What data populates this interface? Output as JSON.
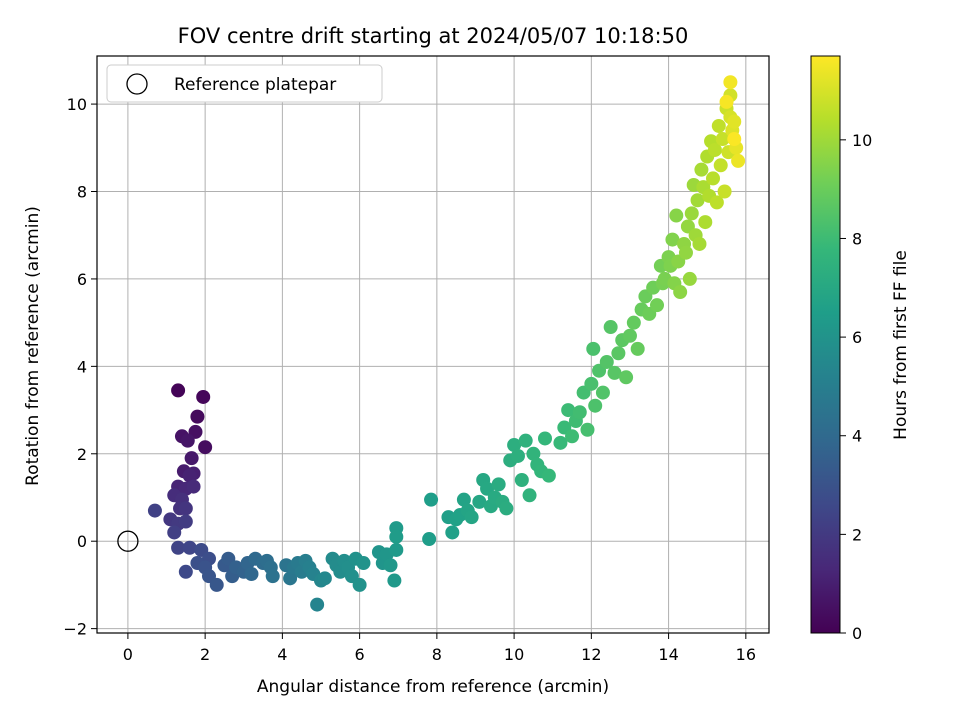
{
  "chart_data": {
    "type": "scatter",
    "title": "FOV centre drift starting at 2024/05/07 10:18:50",
    "xlabel": "Angular distance from reference (arcmin)",
    "ylabel": "Rotation from reference (arcmin)",
    "xlim": [
      -0.8,
      16.6
    ],
    "ylim": [
      -2.1,
      11.1
    ],
    "xticks": [
      0,
      2,
      4,
      6,
      8,
      10,
      12,
      14,
      16
    ],
    "yticks": [
      -2,
      0,
      2,
      4,
      6,
      8,
      10
    ],
    "grid": true,
    "legend": {
      "position": "top-left",
      "entries": [
        {
          "label": "Reference platepar",
          "marker": "open-circle",
          "x": 0,
          "y": 0
        }
      ]
    },
    "colorbar": {
      "label": "Hours from first FF file",
      "range": [
        0,
        11.7
      ],
      "ticks": [
        0,
        2,
        4,
        6,
        8,
        10
      ],
      "colormap": "viridis",
      "stops": [
        "#440154",
        "#482878",
        "#3e4989",
        "#31688e",
        "#26828e",
        "#1f9e89",
        "#35b779",
        "#6ece58",
        "#b5de2b",
        "#fde725"
      ]
    },
    "series": [
      {
        "points": [
          [
            1.3,
            3.45,
            0.1
          ],
          [
            1.95,
            3.3,
            0.2
          ],
          [
            1.8,
            2.85,
            0.3
          ],
          [
            2.0,
            2.15,
            0.4
          ],
          [
            1.75,
            2.5,
            0.5
          ],
          [
            1.4,
            2.4,
            0.6
          ],
          [
            1.55,
            2.3,
            0.7
          ],
          [
            1.65,
            1.9,
            0.8
          ],
          [
            1.45,
            1.6,
            0.9
          ],
          [
            1.7,
            1.55,
            1.0
          ],
          [
            1.6,
            1.5,
            1.1
          ],
          [
            1.3,
            1.25,
            1.2
          ],
          [
            1.5,
            1.2,
            1.3
          ],
          [
            1.7,
            1.25,
            1.4
          ],
          [
            1.2,
            1.05,
            1.5
          ],
          [
            1.4,
            0.95,
            1.6
          ],
          [
            1.35,
            0.75,
            1.7
          ],
          [
            1.5,
            0.75,
            1.8
          ],
          [
            1.1,
            0.5,
            1.9
          ],
          [
            1.3,
            0.4,
            2.0
          ],
          [
            1.5,
            0.45,
            2.1
          ],
          [
            1.2,
            0.2,
            2.2
          ],
          [
            0.7,
            0.7,
            2.3
          ],
          [
            1.3,
            -0.15,
            2.4
          ],
          [
            1.6,
            -0.15,
            2.5
          ],
          [
            1.5,
            -0.7,
            2.6
          ],
          [
            1.9,
            -0.2,
            2.7
          ],
          [
            2.1,
            -0.4,
            2.8
          ],
          [
            1.8,
            -0.5,
            2.9
          ],
          [
            2.0,
            -0.6,
            3.0
          ],
          [
            2.1,
            -0.8,
            3.1
          ],
          [
            2.3,
            -1.0,
            3.2
          ],
          [
            2.5,
            -0.55,
            3.3
          ],
          [
            2.6,
            -0.4,
            3.4
          ],
          [
            2.7,
            -0.8,
            3.5
          ],
          [
            2.8,
            -0.6,
            3.6
          ],
          [
            3.0,
            -0.7,
            3.7
          ],
          [
            3.1,
            -0.5,
            3.8
          ],
          [
            3.2,
            -0.75,
            3.9
          ],
          [
            3.3,
            -0.4,
            4.0
          ],
          [
            3.5,
            -0.5,
            4.1
          ],
          [
            3.6,
            -0.45,
            4.2
          ],
          [
            3.7,
            -0.6,
            4.3
          ],
          [
            3.75,
            -0.8,
            4.4
          ],
          [
            4.1,
            -0.55,
            4.5
          ],
          [
            4.2,
            -0.85,
            4.6
          ],
          [
            4.3,
            -0.6,
            4.7
          ],
          [
            4.4,
            -0.5,
            4.8
          ],
          [
            4.5,
            -0.7,
            4.9
          ],
          [
            4.6,
            -0.45,
            5.0
          ],
          [
            4.7,
            -0.6,
            5.1
          ],
          [
            4.8,
            -0.75,
            5.2
          ],
          [
            4.9,
            -1.45,
            5.3
          ],
          [
            5.0,
            -0.9,
            5.4
          ],
          [
            5.1,
            -0.85,
            5.5
          ],
          [
            5.3,
            -0.4,
            5.6
          ],
          [
            5.4,
            -0.55,
            5.65
          ],
          [
            5.5,
            -0.7,
            5.7
          ],
          [
            5.6,
            -0.45,
            5.75
          ],
          [
            5.7,
            -0.6,
            5.8
          ],
          [
            5.8,
            -0.8,
            5.85
          ],
          [
            5.9,
            -0.4,
            5.9
          ],
          [
            6.0,
            -1.0,
            5.95
          ],
          [
            6.1,
            -0.5,
            6.0
          ],
          [
            6.5,
            -0.25,
            6.05
          ],
          [
            6.6,
            -0.5,
            6.1
          ],
          [
            6.7,
            -0.3,
            6.15
          ],
          [
            6.8,
            -0.55,
            6.2
          ],
          [
            6.9,
            -0.9,
            6.25
          ],
          [
            6.95,
            -0.2,
            6.3
          ],
          [
            6.95,
            0.3,
            6.35
          ],
          [
            6.95,
            0.1,
            6.4
          ],
          [
            7.8,
            0.05,
            6.45
          ],
          [
            7.85,
            0.95,
            6.5
          ],
          [
            8.3,
            0.55,
            6.55
          ],
          [
            8.4,
            0.2,
            6.6
          ],
          [
            8.5,
            0.5,
            6.65
          ],
          [
            8.6,
            0.6,
            6.7
          ],
          [
            8.7,
            0.95,
            6.75
          ],
          [
            8.8,
            0.7,
            6.8
          ],
          [
            8.9,
            0.55,
            6.85
          ],
          [
            9.1,
            0.9,
            6.9
          ],
          [
            9.2,
            1.4,
            6.95
          ],
          [
            9.3,
            1.2,
            7.0
          ],
          [
            9.4,
            0.8,
            7.05
          ],
          [
            9.5,
            1.0,
            7.1
          ],
          [
            9.6,
            1.3,
            7.15
          ],
          [
            9.7,
            0.9,
            7.2
          ],
          [
            9.8,
            0.75,
            7.25
          ],
          [
            9.9,
            1.85,
            7.3
          ],
          [
            10.0,
            2.2,
            7.35
          ],
          [
            10.1,
            1.95,
            7.4
          ],
          [
            10.2,
            1.4,
            7.45
          ],
          [
            10.3,
            2.3,
            7.5
          ],
          [
            10.4,
            1.05,
            7.55
          ],
          [
            10.5,
            2.0,
            7.6
          ],
          [
            10.6,
            1.75,
            7.65
          ],
          [
            10.7,
            1.6,
            7.7
          ],
          [
            10.8,
            2.35,
            7.75
          ],
          [
            10.9,
            1.5,
            7.8
          ],
          [
            11.2,
            2.25,
            7.85
          ],
          [
            11.3,
            2.6,
            7.9
          ],
          [
            11.4,
            3.0,
            7.95
          ],
          [
            11.5,
            2.4,
            8.0
          ],
          [
            11.6,
            2.75,
            8.05
          ],
          [
            11.7,
            2.95,
            8.1
          ],
          [
            11.8,
            3.4,
            8.15
          ],
          [
            11.9,
            2.55,
            8.2
          ],
          [
            12.0,
            3.6,
            8.25
          ],
          [
            12.05,
            4.4,
            8.3
          ],
          [
            12.1,
            3.1,
            8.35
          ],
          [
            12.2,
            3.9,
            8.4
          ],
          [
            12.3,
            3.4,
            8.45
          ],
          [
            12.4,
            4.1,
            8.5
          ],
          [
            12.5,
            4.9,
            8.55
          ],
          [
            12.6,
            3.85,
            8.6
          ],
          [
            12.7,
            4.3,
            8.65
          ],
          [
            12.8,
            4.6,
            8.7
          ],
          [
            12.9,
            3.75,
            8.75
          ],
          [
            13.0,
            4.7,
            8.8
          ],
          [
            13.1,
            5.0,
            8.85
          ],
          [
            13.2,
            4.4,
            8.9
          ],
          [
            13.3,
            5.3,
            8.95
          ],
          [
            13.4,
            5.6,
            9.0
          ],
          [
            13.5,
            5.2,
            9.05
          ],
          [
            13.6,
            5.8,
            9.1
          ],
          [
            13.7,
            5.4,
            9.15
          ],
          [
            13.8,
            6.3,
            9.2
          ],
          [
            13.85,
            5.9,
            9.25
          ],
          [
            13.9,
            6.0,
            9.3
          ],
          [
            14.0,
            6.5,
            9.35
          ],
          [
            14.05,
            6.3,
            9.4
          ],
          [
            14.1,
            6.9,
            9.45
          ],
          [
            14.15,
            5.9,
            9.5
          ],
          [
            14.2,
            7.45,
            9.55
          ],
          [
            14.25,
            6.4,
            9.6
          ],
          [
            14.3,
            5.7,
            9.65
          ],
          [
            14.4,
            6.8,
            9.7
          ],
          [
            14.45,
            6.6,
            9.75
          ],
          [
            14.5,
            7.2,
            9.8
          ],
          [
            14.55,
            6.0,
            9.85
          ],
          [
            14.6,
            7.5,
            9.9
          ],
          [
            14.65,
            8.15,
            9.95
          ],
          [
            14.7,
            7.0,
            10.0
          ],
          [
            14.75,
            7.8,
            10.05
          ],
          [
            14.8,
            6.8,
            10.1
          ],
          [
            14.85,
            8.5,
            10.15
          ],
          [
            14.9,
            8.1,
            10.2
          ],
          [
            14.95,
            7.3,
            10.25
          ],
          [
            15.0,
            8.8,
            10.3
          ],
          [
            15.05,
            7.9,
            10.35
          ],
          [
            15.1,
            9.15,
            10.4
          ],
          [
            15.15,
            8.3,
            10.45
          ],
          [
            15.2,
            8.95,
            10.5
          ],
          [
            15.25,
            7.75,
            10.55
          ],
          [
            15.3,
            9.5,
            10.6
          ],
          [
            15.35,
            8.6,
            10.65
          ],
          [
            15.4,
            9.2,
            10.7
          ],
          [
            15.45,
            8.0,
            10.75
          ],
          [
            15.5,
            9.9,
            10.8
          ],
          [
            15.55,
            8.9,
            10.85
          ],
          [
            15.6,
            10.2,
            10.9
          ],
          [
            15.6,
            9.7,
            11.0
          ],
          [
            15.65,
            9.4,
            11.1
          ],
          [
            15.7,
            9.6,
            11.2
          ],
          [
            15.75,
            9.0,
            11.3
          ],
          [
            15.8,
            8.7,
            11.4
          ],
          [
            15.6,
            10.5,
            11.5
          ],
          [
            15.5,
            10.05,
            11.6
          ],
          [
            15.7,
            9.2,
            11.65
          ]
        ]
      }
    ]
  }
}
